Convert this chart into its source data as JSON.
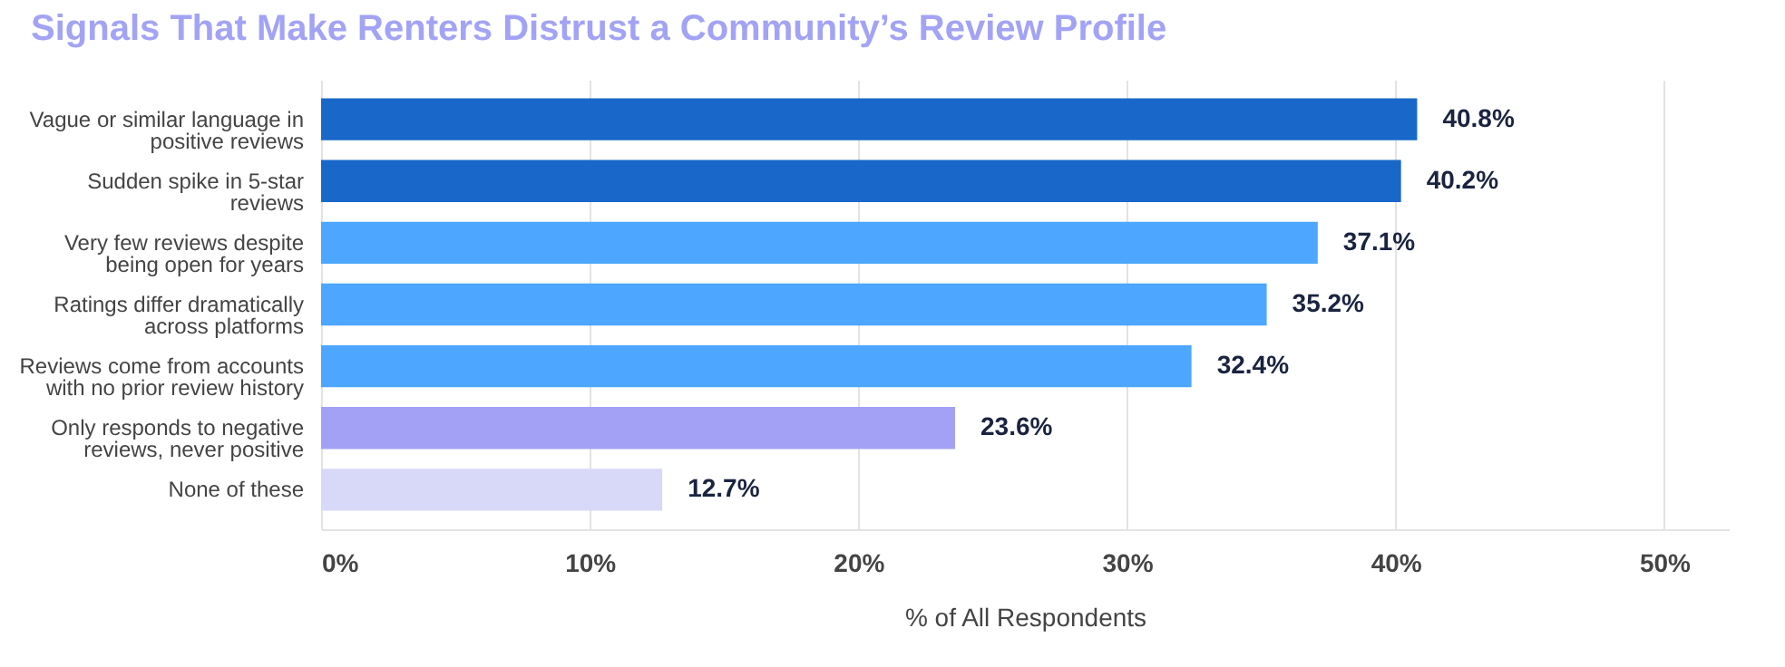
{
  "chart_data": {
    "type": "bar",
    "orientation": "horizontal",
    "title": "Signals That Make Renters Distrust a Community’s Review Profile",
    "xlabel": "% of All Respondents",
    "categories": [
      "Vague or similar language in positive reviews",
      "Sudden spike in 5-star reviews",
      "Very few reviews despite being open for years",
      "Ratings differ dramatically across platforms",
      "Reviews come from accounts with no prior review history",
      "Only responds to negative reviews, never positive",
      "None of these"
    ],
    "values": [
      40.8,
      40.2,
      37.1,
      35.2,
      32.4,
      23.6,
      12.7
    ],
    "colors": [
      "#1967c9",
      "#1967c9",
      "#4da6ff",
      "#4da6ff",
      "#4da6ff",
      "#a3a1f6",
      "#d8d8f9"
    ],
    "value_labels": [
      "40.8%",
      "40.2%",
      "37.1%",
      "35.2%",
      "32.4%",
      "23.6%",
      "12.7%"
    ],
    "xlim": [
      0,
      52.4
    ],
    "xticks": [
      {
        "value": 0,
        "label": "0%"
      },
      {
        "value": 10,
        "label": "10%"
      },
      {
        "value": 20,
        "label": "20%"
      },
      {
        "value": 30,
        "label": "30%"
      },
      {
        "value": 40,
        "label": "40%"
      },
      {
        "value": 50,
        "label": "50%"
      }
    ],
    "grid": "x"
  }
}
